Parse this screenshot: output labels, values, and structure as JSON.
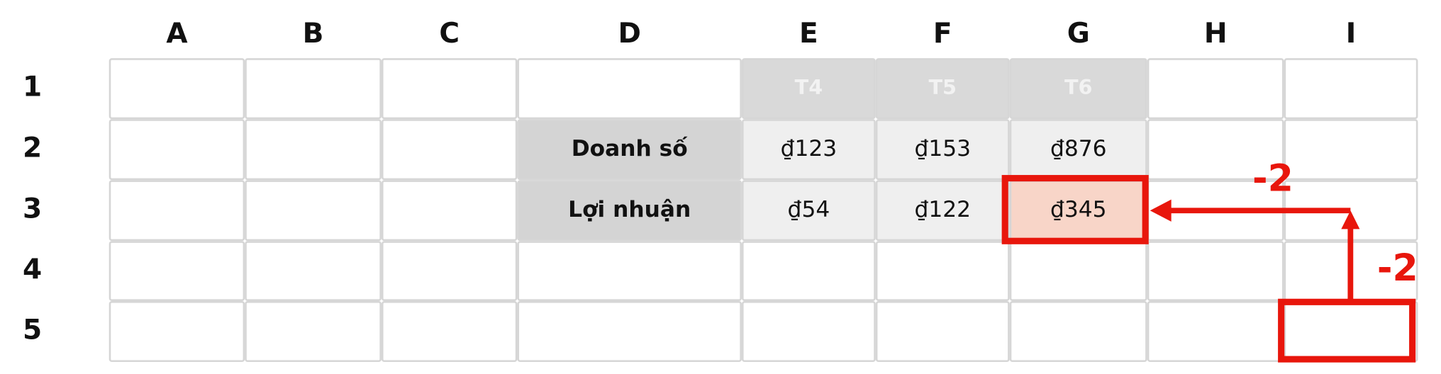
{
  "spreadsheet": {
    "columns": [
      "A",
      "B",
      "C",
      "D",
      "E",
      "F",
      "G",
      "H",
      "I"
    ],
    "rows": [
      "1",
      "2",
      "3",
      "4",
      "5"
    ],
    "months": [
      "T4",
      "T5",
      "T6"
    ],
    "metrics": [
      {
        "label": "Doanh số",
        "values": [
          "₫123",
          "₫153",
          "₫876"
        ]
      },
      {
        "label": "Lợi nhuận",
        "values": [
          "₫54",
          "₫122",
          "₫345"
        ]
      }
    ],
    "annotations": {
      "horizontal_offset": "-2",
      "vertical_offset": "-2"
    }
  }
}
